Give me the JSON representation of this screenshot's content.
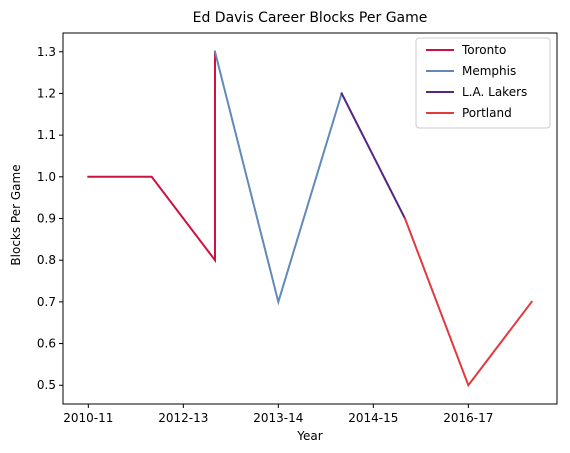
{
  "chart_data": {
    "type": "line",
    "title": "Ed Davis  Career Blocks Per Game",
    "xlabel": "Year",
    "ylabel": "Blocks Per Game",
    "x_tick_labels": [
      "2010-11",
      "2012-13",
      "2013-14",
      "2014-15",
      "2016-17"
    ],
    "y_ticks": [
      0.5,
      0.6,
      0.7,
      0.8,
      0.9,
      1.0,
      1.1,
      1.2,
      1.3
    ],
    "xlim": [
      -0.4,
      7.4
    ],
    "ylim": [
      0.455,
      1.345
    ],
    "grid": false,
    "legend_position": "top-right",
    "series": [
      {
        "name": "Toronto",
        "color": "#CE1141",
        "points": [
          [
            0,
            1.0
          ],
          [
            1,
            1.0
          ],
          [
            2,
            0.8
          ],
          [
            2,
            1.3
          ]
        ]
      },
      {
        "name": "Memphis",
        "color": "#6189B9",
        "points": [
          [
            2,
            1.3
          ],
          [
            3,
            0.7
          ],
          [
            4,
            1.2
          ]
        ]
      },
      {
        "name": "L.A. Lakers",
        "color": "#552583",
        "points": [
          [
            4,
            1.2
          ],
          [
            5,
            0.9
          ]
        ]
      },
      {
        "name": "Portland",
        "color": "#E03A3E",
        "points": [
          [
            5,
            0.9
          ],
          [
            6,
            0.5
          ],
          [
            7,
            0.7
          ]
        ]
      }
    ]
  }
}
